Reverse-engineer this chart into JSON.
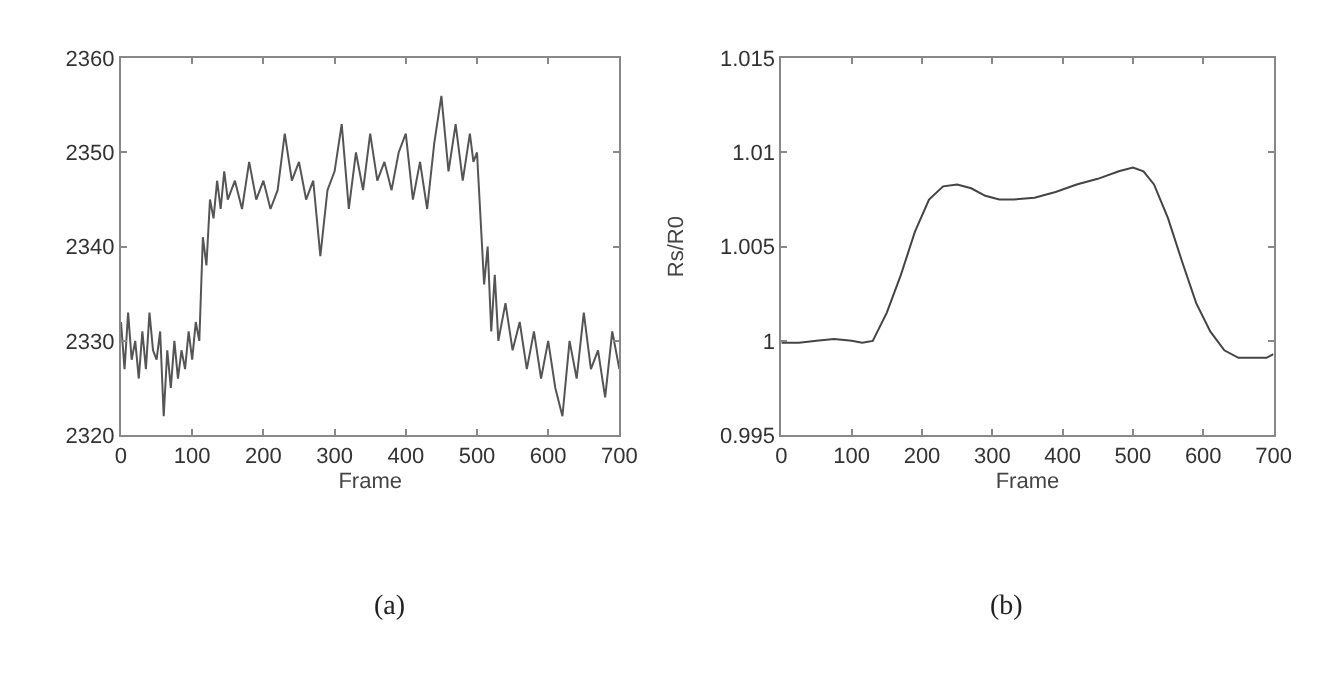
{
  "chart_data": [
    {
      "type": "line",
      "title": "(a)",
      "xlabel": "Frame",
      "x": [
        0,
        5,
        10,
        15,
        20,
        25,
        30,
        35,
        40,
        45,
        50,
        55,
        60,
        65,
        70,
        75,
        80,
        85,
        90,
        95,
        100,
        105,
        110,
        115,
        120,
        125,
        130,
        135,
        140,
        145,
        150,
        160,
        170,
        180,
        190,
        200,
        210,
        220,
        230,
        240,
        250,
        260,
        270,
        280,
        290,
        300,
        310,
        320,
        330,
        340,
        350,
        360,
        370,
        380,
        390,
        400,
        410,
        420,
        430,
        440,
        450,
        460,
        470,
        480,
        490,
        495,
        500,
        505,
        510,
        515,
        520,
        525,
        530,
        540,
        550,
        560,
        570,
        580,
        590,
        600,
        610,
        620,
        630,
        640,
        650,
        660,
        670,
        680,
        690,
        700
      ],
      "series": [
        {
          "color": "#555555",
          "values": [
            2332,
            2327,
            2333,
            2328,
            2330,
            2326,
            2331,
            2327,
            2333,
            2329,
            2328,
            2331,
            2322,
            2329,
            2325,
            2330,
            2326,
            2329,
            2327,
            2331,
            2328,
            2332,
            2330,
            2341,
            2338,
            2345,
            2343,
            2347,
            2344,
            2348,
            2345,
            2347,
            2344,
            2349,
            2345,
            2347,
            2344,
            2346,
            2352,
            2347,
            2349,
            2345,
            2347,
            2339,
            2346,
            2348,
            2353,
            2344,
            2350,
            2346,
            2352,
            2347,
            2349,
            2346,
            2350,
            2352,
            2345,
            2349,
            2344,
            2351,
            2356,
            2348,
            2353,
            2347,
            2352,
            2349,
            2350,
            2343,
            2336,
            2340,
            2331,
            2337,
            2330,
            2334,
            2329,
            2332,
            2327,
            2331,
            2326,
            2330,
            2325,
            2322,
            2330,
            2326,
            2333,
            2327,
            2329,
            2324,
            2331,
            2327
          ]
        }
      ],
      "xlim": [
        0,
        700
      ],
      "xticks": [
        0,
        100,
        200,
        300,
        400,
        500,
        600,
        700
      ],
      "ylim": [
        2320,
        2360
      ],
      "yticks": [
        2320,
        2330,
        2340,
        2350,
        2360
      ]
    },
    {
      "type": "line",
      "title": "(b)",
      "xlabel": "Frame",
      "ylabel": "Rs/R0",
      "x": [
        0,
        25,
        50,
        75,
        100,
        115,
        130,
        150,
        170,
        190,
        210,
        230,
        250,
        270,
        290,
        310,
        330,
        360,
        390,
        420,
        450,
        480,
        500,
        515,
        530,
        550,
        570,
        590,
        610,
        630,
        650,
        670,
        690,
        700
      ],
      "series": [
        {
          "color": "#444444",
          "values": [
            0.9999,
            0.9999,
            1.0,
            1.0001,
            1.0,
            0.9999,
            1.0,
            1.0015,
            1.0035,
            1.0058,
            1.0075,
            1.0082,
            1.0083,
            1.0081,
            1.0077,
            1.0075,
            1.0075,
            1.0076,
            1.0079,
            1.0083,
            1.0086,
            1.009,
            1.0092,
            1.009,
            1.0083,
            1.0065,
            1.0042,
            1.002,
            1.0005,
            0.9995,
            0.9991,
            0.9991,
            0.9991,
            0.9993
          ]
        }
      ],
      "xlim": [
        0,
        700
      ],
      "xticks": [
        0,
        100,
        200,
        300,
        400,
        500,
        600,
        700
      ],
      "ylim": [
        0.995,
        1.015
      ],
      "yticks": [
        0.995,
        1,
        1.005,
        1.01,
        1.015
      ]
    }
  ]
}
